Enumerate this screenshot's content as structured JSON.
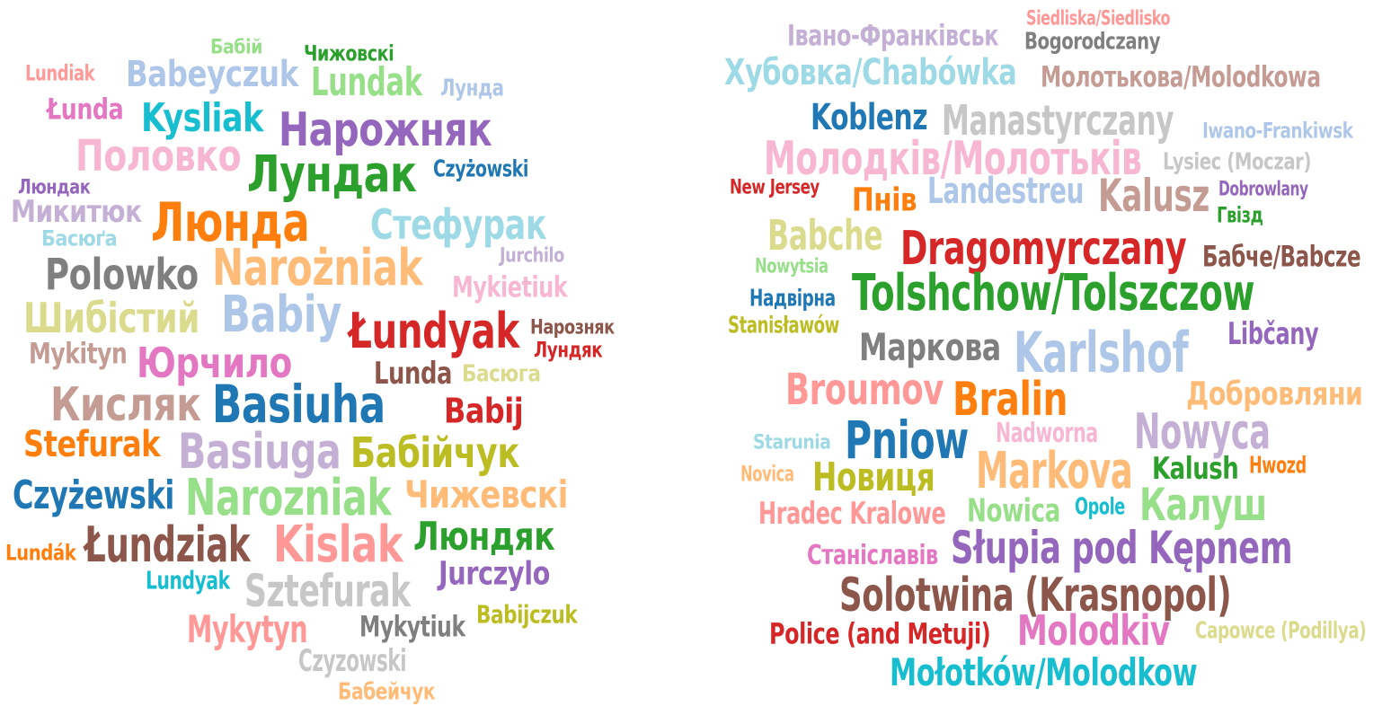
{
  "clouds": [
    {
      "id": "surnames",
      "words": [
        {
          "text": "Бабій",
          "color": "#98df8a"
        },
        {
          "text": "Чижовскі",
          "color": "#2ca02c"
        },
        {
          "text": "Lundiak",
          "color": "#ff9896"
        },
        {
          "text": "Babeyczuk",
          "color": "#aec7e8"
        },
        {
          "text": "Lundak",
          "color": "#98df8a"
        },
        {
          "text": "Лунда",
          "color": "#aec7e8"
        },
        {
          "text": "Łunda",
          "color": "#e377c2"
        },
        {
          "text": "Kysliak",
          "color": "#17becf"
        },
        {
          "text": "Нарожняк",
          "color": "#9467bd"
        },
        {
          "text": "Половко",
          "color": "#f7b6d2"
        },
        {
          "text": "Лундак",
          "color": "#2ca02c"
        },
        {
          "text": "Czyżowski",
          "color": "#1f77b4"
        },
        {
          "text": "Люндак",
          "color": "#9467bd"
        },
        {
          "text": "Микитюк",
          "color": "#c5b0d5"
        },
        {
          "text": "Люнда",
          "color": "#ff7f0e"
        },
        {
          "text": "Стефурак",
          "color": "#9edae5"
        },
        {
          "text": "Басюґа",
          "color": "#9edae5"
        },
        {
          "text": "Jurchilo",
          "color": "#c5b0d5"
        },
        {
          "text": "Polowko",
          "color": "#7f7f7f"
        },
        {
          "text": "Narożniak",
          "color": "#ffbb78"
        },
        {
          "text": "Mykietiuk",
          "color": "#f7b6d2"
        },
        {
          "text": "Шибістий",
          "color": "#dbdb8d"
        },
        {
          "text": "Babiy",
          "color": "#aec7e8"
        },
        {
          "text": "Łundyak",
          "color": "#d62728"
        },
        {
          "text": "Нарозняк",
          "color": "#8c564b"
        },
        {
          "text": "Лундяк",
          "color": "#d62728"
        },
        {
          "text": "Mykityn",
          "color": "#c49c94"
        },
        {
          "text": "Юрчило",
          "color": "#e377c2"
        },
        {
          "text": "Lunda",
          "color": "#8c564b"
        },
        {
          "text": "Басюга",
          "color": "#dbdb8d"
        },
        {
          "text": "Кисляк",
          "color": "#c49c94"
        },
        {
          "text": "Basiuha",
          "color": "#1f77b4"
        },
        {
          "text": "Babij",
          "color": "#d62728"
        },
        {
          "text": "Stefurak",
          "color": "#ff7f0e"
        },
        {
          "text": "Basiuga",
          "color": "#c5b0d5"
        },
        {
          "text": "Бабійчук",
          "color": "#bcbd22"
        },
        {
          "text": "Czyżewski",
          "color": "#1f77b4"
        },
        {
          "text": "Narozniak",
          "color": "#98df8a"
        },
        {
          "text": "Чижевскі",
          "color": "#ffbb78"
        },
        {
          "text": "Lundák",
          "color": "#ff7f0e"
        },
        {
          "text": "Łundziak",
          "color": "#8c564b"
        },
        {
          "text": "Kislak",
          "color": "#ff9896"
        },
        {
          "text": "Люндяк",
          "color": "#2ca02c"
        },
        {
          "text": "Lundyak",
          "color": "#17becf"
        },
        {
          "text": "Jurczylo",
          "color": "#9467bd"
        },
        {
          "text": "Sztefurak",
          "color": "#c7c7c7"
        },
        {
          "text": "Babijczuk",
          "color": "#bcbd22"
        },
        {
          "text": "Mykytyn",
          "color": "#ff9896"
        },
        {
          "text": "Mykytiuk",
          "color": "#7f7f7f"
        },
        {
          "text": "Czyzowski",
          "color": "#c7c7c7"
        },
        {
          "text": "Бабейчук",
          "color": "#ffbb78"
        }
      ]
    },
    {
      "id": "places",
      "words": [
        {
          "text": "Siedliska/Siedlisko",
          "color": "#ff9896"
        },
        {
          "text": "Івано-Франківськ",
          "color": "#c5b0d5"
        },
        {
          "text": "Bogorodczany",
          "color": "#7f7f7f"
        },
        {
          "text": "Хубовка/Chabówka",
          "color": "#9edae5"
        },
        {
          "text": "Молотькова/Molodkowa",
          "color": "#c49c94"
        },
        {
          "text": "Koblenz",
          "color": "#1f77b4"
        },
        {
          "text": "Manastyrczany",
          "color": "#c7c7c7"
        },
        {
          "text": "Iwano-Frankiwsk",
          "color": "#aec7e8"
        },
        {
          "text": "Молодків/Молотьків",
          "color": "#f7b6d2"
        },
        {
          "text": "Lysiec (Moczar)",
          "color": "#c7c7c7"
        },
        {
          "text": "New Jersey",
          "color": "#d62728"
        },
        {
          "text": "Пнів",
          "color": "#ff7f0e"
        },
        {
          "text": "Landestreu",
          "color": "#aec7e8"
        },
        {
          "text": "Kalusz",
          "color": "#c49c94"
        },
        {
          "text": "Dobrowlany",
          "color": "#9467bd"
        },
        {
          "text": "Гвізд",
          "color": "#2ca02c"
        },
        {
          "text": "Babche",
          "color": "#dbdb8d"
        },
        {
          "text": "Dragomyrczany",
          "color": "#d62728"
        },
        {
          "text": "Бабче/Babcze",
          "color": "#8c564b"
        },
        {
          "text": "Nowytsia",
          "color": "#98df8a"
        },
        {
          "text": "Tolshchow/Tolszczow",
          "color": "#2ca02c"
        },
        {
          "text": "Надвірна",
          "color": "#1f77b4"
        },
        {
          "text": "Stanisławów",
          "color": "#bcbd22"
        },
        {
          "text": "Libčany",
          "color": "#9467bd"
        },
        {
          "text": "Маркова",
          "color": "#7f7f7f"
        },
        {
          "text": "Karlshof",
          "color": "#aec7e8"
        },
        {
          "text": "Broumov",
          "color": "#ff9896"
        },
        {
          "text": "Bralin",
          "color": "#ff7f0e"
        },
        {
          "text": "Добровляни",
          "color": "#ffbb78"
        },
        {
          "text": "Starunia",
          "color": "#9edae5"
        },
        {
          "text": "Pniow",
          "color": "#1f77b4"
        },
        {
          "text": "Nadworna",
          "color": "#f7b6d2"
        },
        {
          "text": "Nowyca",
          "color": "#c5b0d5"
        },
        {
          "text": "Novica",
          "color": "#ffbb78"
        },
        {
          "text": "Новиця",
          "color": "#bcbd22"
        },
        {
          "text": "Markova",
          "color": "#ffbb78"
        },
        {
          "text": "Kalush",
          "color": "#2ca02c"
        },
        {
          "text": "Hwozd",
          "color": "#ff7f0e"
        },
        {
          "text": "Hradec Kralowe",
          "color": "#ff9896"
        },
        {
          "text": "Nowica",
          "color": "#98df8a"
        },
        {
          "text": "Opole",
          "color": "#17becf"
        },
        {
          "text": "Калуш",
          "color": "#98df8a"
        },
        {
          "text": "Станіславів",
          "color": "#e377c2"
        },
        {
          "text": "Słupia pod Kępnem",
          "color": "#9467bd"
        },
        {
          "text": "Solotwina (Krasnopol)",
          "color": "#8c564b"
        },
        {
          "text": "Police (and Metuji)",
          "color": "#d62728"
        },
        {
          "text": "Molodkiv",
          "color": "#e377c2"
        },
        {
          "text": "Capowce (Podillya)",
          "color": "#dbdb8d"
        },
        {
          "text": "Mołotków/Molodkow",
          "color": "#17becf"
        }
      ]
    }
  ]
}
